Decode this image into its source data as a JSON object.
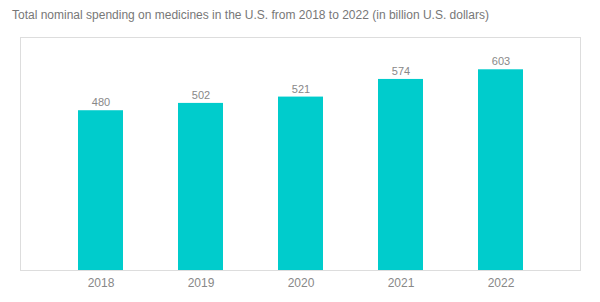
{
  "chart_data": {
    "type": "bar",
    "title": "Total nominal spending on medicines in the U.S. from 2018 to 2022 (in billion U.S. dollars)",
    "categories": [
      "2018",
      "2019",
      "2020",
      "2021",
      "2022"
    ],
    "values": [
      480,
      502,
      521,
      574,
      603
    ],
    "color": "#00CCCC",
    "ylim": [
      0,
      700
    ],
    "grid": false,
    "data_labels": true,
    "tick_labels": "x"
  }
}
